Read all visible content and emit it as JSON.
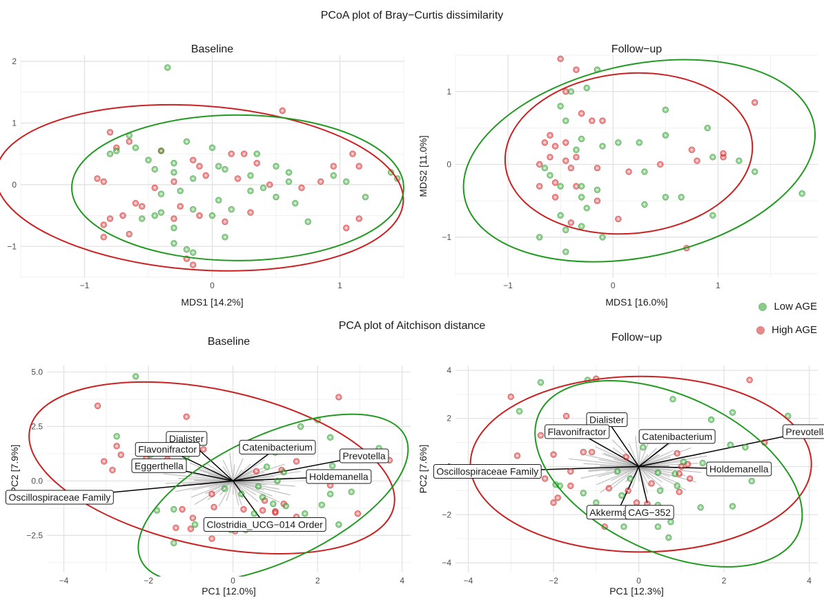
{
  "headings": {
    "pcoa": "PCoA plot of Bray−Curtis dissimilarity",
    "pca": "PCA plot of Aitchison distance"
  },
  "legend": {
    "items": [
      {
        "label": "Low AGE",
        "color": "#2ca02c"
      },
      {
        "label": "High AGE",
        "color": "#d62728"
      }
    ]
  },
  "colors": {
    "low": "#2ca02c",
    "high": "#d62728",
    "ellipse_low": "#1f9a1f",
    "ellipse_high": "#cc1f1f",
    "arrow": "#000000",
    "minor_arrow": "#8c8c8c"
  },
  "chart_data": [
    {
      "type": "scatter",
      "title": "Baseline",
      "xlabel": "MDS1 [14.2%]",
      "ylabel": "MDS2 [10.8%]",
      "xlim": [
        -1.5,
        1.5
      ],
      "ylim": [
        -1.5,
        2.1
      ],
      "xticks": [
        -1,
        0,
        1
      ],
      "yticks": [
        -1,
        0,
        1,
        2
      ],
      "grid": true,
      "low": [
        [
          -0.35,
          1.9
        ],
        [
          -0.2,
          0.7
        ],
        [
          0.0,
          0.6
        ],
        [
          0.35,
          0.5
        ],
        [
          -0.5,
          0.4
        ],
        [
          -0.3,
          0.35
        ],
        [
          -0.6,
          0.6
        ],
        [
          -0.65,
          0.8
        ],
        [
          -0.75,
          0.55
        ],
        [
          0.05,
          0.3
        ],
        [
          0.1,
          0.25
        ],
        [
          0.5,
          0.3
        ],
        [
          0.6,
          0.2
        ],
        [
          0.3,
          0.15
        ],
        [
          0.95,
          0.15
        ],
        [
          1.4,
          0.2
        ],
        [
          1.45,
          0.1
        ],
        [
          1.05,
          0.05
        ],
        [
          0.6,
          0.05
        ],
        [
          -0.45,
          0.25
        ],
        [
          -0.4,
          0.55
        ],
        [
          -0.3,
          0.2
        ],
        [
          -0.15,
          0.1
        ],
        [
          -0.25,
          -0.1
        ],
        [
          -0.4,
          -0.15
        ],
        [
          -0.15,
          -0.4
        ],
        [
          0.05,
          -0.25
        ],
        [
          0.15,
          -0.4
        ],
        [
          0.3,
          -0.1
        ],
        [
          0.4,
          -0.05
        ],
        [
          0.5,
          -0.2
        ],
        [
          0.65,
          -0.3
        ],
        [
          0.75,
          -0.6
        ],
        [
          1.2,
          -0.2
        ],
        [
          -0.3,
          -0.7
        ],
        [
          -0.2,
          -1.05
        ],
        [
          -0.3,
          -0.95
        ],
        [
          0.1,
          -0.85
        ],
        [
          -0.45,
          -0.5
        ],
        [
          -0.55,
          -0.55
        ],
        [
          0.0,
          -0.5
        ],
        [
          -0.15,
          -1.1
        ],
        [
          -0.4,
          -0.45
        ],
        [
          -0.8,
          0.5
        ]
      ],
      "high": [
        [
          -0.8,
          0.85
        ],
        [
          -0.65,
          0.7
        ],
        [
          -0.75,
          0.6
        ],
        [
          -0.4,
          0.55
        ],
        [
          -0.15,
          0.4
        ],
        [
          0.15,
          0.5
        ],
        [
          0.25,
          0.5
        ],
        [
          0.35,
          0.35
        ],
        [
          -0.1,
          0.3
        ],
        [
          0.55,
          1.2
        ],
        [
          0.95,
          0.3
        ],
        [
          1.1,
          0.5
        ],
        [
          1.15,
          0.3
        ],
        [
          0.85,
          0.05
        ],
        [
          0.7,
          -0.05
        ],
        [
          0.45,
          0.0
        ],
        [
          0.2,
          0.1
        ],
        [
          -0.05,
          0.15
        ],
        [
          -0.3,
          0.05
        ],
        [
          -0.45,
          -0.05
        ],
        [
          -0.9,
          0.1
        ],
        [
          -0.85,
          0.05
        ],
        [
          -0.6,
          -0.3
        ],
        [
          -0.55,
          -0.35
        ],
        [
          -0.7,
          -0.5
        ],
        [
          -0.8,
          -0.55
        ],
        [
          -0.85,
          -0.65
        ],
        [
          -0.25,
          -0.35
        ],
        [
          -0.1,
          -0.5
        ],
        [
          0.3,
          -0.45
        ],
        [
          0.1,
          -0.6
        ],
        [
          1.15,
          -0.55
        ],
        [
          1.05,
          -0.7
        ],
        [
          -0.2,
          -1.2
        ],
        [
          -0.15,
          -1.3
        ],
        [
          -0.85,
          -0.85
        ],
        [
          -0.65,
          -0.8
        ],
        [
          -0.3,
          -0.55
        ]
      ],
      "ellipse_low": {
        "cx": 0.2,
        "cy": -0.05,
        "rx": 1.3,
        "ry": 1.18,
        "angle": 0
      },
      "ellipse_high": {
        "cx": -0.1,
        "cy": -0.05,
        "rx": 1.6,
        "ry": 1.33,
        "angle": -4
      }
    },
    {
      "type": "scatter",
      "title": "Follow−up",
      "xlabel": "MDS1 [16.0%]",
      "ylabel": "MDS2 [11.0%]",
      "xlim": [
        -1.5,
        1.95
      ],
      "ylim": [
        -1.55,
        1.5
      ],
      "xticks": [
        -1,
        0,
        1
      ],
      "yticks": [
        -1,
        0,
        1
      ],
      "grid": true,
      "low": [
        [
          -0.15,
          1.3
        ],
        [
          -0.25,
          1.05
        ],
        [
          -0.4,
          1.0
        ],
        [
          -0.5,
          0.8
        ],
        [
          -0.45,
          0.6
        ],
        [
          -0.3,
          0.35
        ],
        [
          -0.35,
          0.2
        ],
        [
          -0.1,
          0.25
        ],
        [
          0.05,
          0.3
        ],
        [
          0.25,
          0.3
        ],
        [
          0.5,
          0.75
        ],
        [
          0.5,
          0.4
        ],
        [
          0.9,
          0.5
        ],
        [
          0.95,
          0.1
        ],
        [
          1.2,
          0.05
        ],
        [
          1.35,
          -0.1
        ],
        [
          1.8,
          -0.4
        ],
        [
          0.65,
          -0.45
        ],
        [
          0.5,
          -0.45
        ],
        [
          0.3,
          -0.55
        ],
        [
          0.3,
          -0.1
        ],
        [
          -0.15,
          -0.35
        ],
        [
          -0.3,
          -0.45
        ],
        [
          -0.25,
          -0.6
        ],
        [
          -0.3,
          -0.85
        ],
        [
          -0.45,
          -0.9
        ],
        [
          -0.45,
          -1.2
        ],
        [
          -0.1,
          -1.0
        ],
        [
          -0.5,
          -0.3
        ],
        [
          -0.6,
          -0.15
        ],
        [
          -0.7,
          -1.0
        ],
        [
          -0.65,
          -0.05
        ],
        [
          -0.3,
          -0.3
        ],
        [
          0.95,
          -0.7
        ],
        [
          -0.5,
          -0.7
        ]
      ],
      "high": [
        [
          -0.5,
          1.45
        ],
        [
          -0.35,
          1.3
        ],
        [
          -0.45,
          1.0
        ],
        [
          -0.3,
          0.7
        ],
        [
          -0.1,
          0.6
        ],
        [
          -0.2,
          0.6
        ],
        [
          -0.6,
          0.4
        ],
        [
          -0.65,
          0.3
        ],
        [
          -0.55,
          0.25
        ],
        [
          -0.6,
          0.1
        ],
        [
          -0.45,
          0.05
        ],
        [
          -0.35,
          0.1
        ],
        [
          -0.7,
          0.0
        ],
        [
          -0.4,
          -0.05
        ],
        [
          -0.15,
          -0.05
        ],
        [
          0.15,
          -0.1
        ],
        [
          0.45,
          0.0
        ],
        [
          0.75,
          0.2
        ],
        [
          0.8,
          0.05
        ],
        [
          1.05,
          0.1
        ],
        [
          -0.7,
          -0.3
        ],
        [
          -0.55,
          -0.45
        ],
        [
          -0.35,
          -0.3
        ],
        [
          -0.15,
          -0.5
        ],
        [
          0.05,
          -0.75
        ],
        [
          -0.4,
          -0.8
        ],
        [
          0.7,
          -1.15
        ],
        [
          1.05,
          0.15
        ],
        [
          1.35,
          0.85
        ],
        [
          -0.55,
          -0.25
        ],
        [
          -0.45,
          0.3
        ]
      ],
      "ellipse_low": {
        "cx": 0.25,
        "cy": 0.05,
        "rx": 1.7,
        "ry": 1.32,
        "angle": 12
      },
      "ellipse_high": {
        "cx": 0.15,
        "cy": 0.15,
        "rx": 1.18,
        "ry": 1.1,
        "angle": 5
      }
    },
    {
      "type": "scatter",
      "title": "Baseline",
      "xlabel": "PC1 [12.0%]",
      "ylabel": "PC2 [7.9%]",
      "xlim": [
        -4.4,
        4.2
      ],
      "ylim": [
        -4.2,
        5.3
      ],
      "xticks": [
        -4,
        -2,
        0,
        2,
        4
      ],
      "yticks": [
        -2.5,
        0.0,
        2.5,
        5.0
      ],
      "ytick_labels": [
        "−2.5",
        "0.0",
        "2.5",
        "5.0"
      ],
      "grid": true,
      "low": [
        [
          -2.3,
          4.8
        ],
        [
          -2.75,
          2.05
        ],
        [
          -1.95,
          1.2
        ],
        [
          -1.1,
          1.1
        ],
        [
          1.6,
          2.5
        ],
        [
          2.0,
          2.8
        ],
        [
          2.3,
          2.0
        ],
        [
          3.45,
          1.5
        ],
        [
          2.35,
          0.7
        ],
        [
          1.25,
          1.4
        ],
        [
          1.0,
          1.3
        ],
        [
          0.8,
          0.65
        ],
        [
          1.2,
          0.4
        ],
        [
          2.3,
          -0.6
        ],
        [
          2.8,
          -0.5
        ],
        [
          3.15,
          0.1
        ],
        [
          2.1,
          -1.1
        ],
        [
          1.7,
          -1.5
        ],
        [
          2.5,
          -2.0
        ],
        [
          0.5,
          -1.5
        ],
        [
          0.2,
          -0.6
        ],
        [
          -0.2,
          -0.35
        ],
        [
          -1.4,
          -1.3
        ],
        [
          -1.8,
          -1.35
        ],
        [
          -1.4,
          -2.85
        ],
        [
          -0.9,
          -2.0
        ],
        [
          -0.05,
          -2.25
        ],
        [
          0.3,
          -2.25
        ],
        [
          1.25,
          -1.15
        ],
        [
          0.7,
          -0.75
        ],
        [
          0.6,
          -0.25
        ],
        [
          1.05,
          0.0
        ],
        [
          0.95,
          -1.05
        ]
      ],
      "high": [
        [
          -3.2,
          3.45
        ],
        [
          -2.75,
          1.6
        ],
        [
          -2.65,
          1.2
        ],
        [
          -1.1,
          2.95
        ],
        [
          -2.05,
          1.05
        ],
        [
          -3.05,
          0.9
        ],
        [
          -2.85,
          0.5
        ],
        [
          -1.55,
          1.0
        ],
        [
          -0.95,
          -1.7
        ],
        [
          -1.2,
          -1.3
        ],
        [
          -1.35,
          -2.15
        ],
        [
          -1.0,
          -2.2
        ],
        [
          -0.45,
          -1.2
        ],
        [
          -0.5,
          -2.0
        ],
        [
          -0.5,
          -2.65
        ],
        [
          0.05,
          -2.3
        ],
        [
          0.25,
          -1.3
        ],
        [
          0.7,
          -1.35
        ],
        [
          1.0,
          -1.4
        ],
        [
          1.5,
          -1.65
        ],
        [
          0.8,
          -2.1
        ],
        [
          1.0,
          -1.45
        ],
        [
          1.2,
          -1.05
        ],
        [
          1.8,
          0.35
        ],
        [
          2.5,
          3.85
        ],
        [
          3.7,
          0.95
        ],
        [
          2.95,
          -1.5
        ],
        [
          2.3,
          -0.2
        ],
        [
          -0.5,
          -0.6
        ],
        [
          0.55,
          0.45
        ],
        [
          1.5,
          0.9
        ],
        [
          -0.7,
          1.45
        ],
        [
          0.75,
          -0.9
        ],
        [
          1.15,
          0.5
        ]
      ],
      "ellipse_low": {
        "cx": 0.95,
        "cy": -0.8,
        "rx": 3.45,
        "ry": 2.9,
        "angle": 25
      },
      "ellipse_high": {
        "cx": -0.5,
        "cy": 0.6,
        "rx": 4.4,
        "ry": 3.6,
        "angle": -12
      },
      "loadings": [
        {
          "label": "Dialister",
          "x": -1.1,
          "y": 1.95
        },
        {
          "label": "Flavonifractor",
          "x": -1.55,
          "y": 1.45
        },
        {
          "label": "Eggerthella",
          "x": -1.75,
          "y": 0.7
        },
        {
          "label": "Oscillospiraceae Family",
          "x": -4.1,
          "y": -0.75
        },
        {
          "label": "Catenibacterium",
          "x": 1.05,
          "y": 1.55
        },
        {
          "label": "Prevotella",
          "x": 3.1,
          "y": 1.15
        },
        {
          "label": "Holdemanella",
          "x": 2.5,
          "y": 0.2
        },
        {
          "label": "Clostridia_UCG−014 Order",
          "x": 0.75,
          "y": -2.0
        }
      ]
    },
    {
      "type": "scatter",
      "title": "Follow−up",
      "xlabel": "PC1 [12.3%]",
      "ylabel": "PC2 [7.6%]",
      "xlim": [
        -4.3,
        4.2
      ],
      "ylim": [
        -4.4,
        4.2
      ],
      "xticks": [
        -4,
        -2,
        0,
        2,
        4
      ],
      "yticks": [
        -4,
        -2,
        0,
        2,
        4
      ],
      "ytick_labels": [
        "−4",
        "−2",
        "0",
        "2",
        "4"
      ],
      "grid": true,
      "low": [
        [
          -1.2,
          3.6
        ],
        [
          -2.3,
          3.5
        ],
        [
          -2.8,
          2.3
        ],
        [
          0.8,
          2.8
        ],
        [
          1.7,
          1.95
        ],
        [
          2.2,
          2.25
        ],
        [
          3.5,
          2.1
        ],
        [
          2.15,
          0.9
        ],
        [
          2.5,
          0.8
        ],
        [
          -0.9,
          1.7
        ],
        [
          0.1,
          0.8
        ],
        [
          0.5,
          1.1
        ],
        [
          1.05,
          0.2
        ],
        [
          0.85,
          -0.3
        ],
        [
          2.65,
          -0.6
        ],
        [
          1.45,
          -1.7
        ],
        [
          0.45,
          -1.6
        ],
        [
          0.75,
          -2.3
        ],
        [
          0.45,
          -2.5
        ],
        [
          -0.35,
          -2.5
        ],
        [
          -1.3,
          -1.1
        ],
        [
          -1.85,
          -0.8
        ],
        [
          -1.95,
          -0.75
        ],
        [
          -1.0,
          -1.5
        ],
        [
          -0.4,
          -1.2
        ],
        [
          0.9,
          -0.8
        ],
        [
          1.5,
          0.15
        ],
        [
          -0.5,
          -0.2
        ],
        [
          -0.2,
          -0.5
        ],
        [
          0.45,
          -0.25
        ],
        [
          2.2,
          -1.65
        ],
        [
          0.5,
          -1.0
        ],
        [
          0.7,
          -2.95
        ]
      ],
      "high": [
        [
          -1.0,
          3.65
        ],
        [
          -3.0,
          2.9
        ],
        [
          -1.7,
          2.1
        ],
        [
          -1.75,
          1.6
        ],
        [
          -2.3,
          1.3
        ],
        [
          -1.3,
          0.6
        ],
        [
          -1.1,
          0.6
        ],
        [
          -2.0,
          0.5
        ],
        [
          -1.6,
          -0.2
        ],
        [
          -1.6,
          -0.8
        ],
        [
          -2.0,
          -1.5
        ],
        [
          -2.2,
          -0.5
        ],
        [
          -1.9,
          -1.3
        ],
        [
          -0.7,
          -0.9
        ],
        [
          -0.8,
          -2.5
        ],
        [
          -0.25,
          -1.0
        ],
        [
          -0.05,
          -1.5
        ],
        [
          0.3,
          -0.7
        ],
        [
          0.2,
          -1.55
        ],
        [
          1.2,
          -0.5
        ],
        [
          0.95,
          -1.05
        ],
        [
          0.9,
          0.55
        ],
        [
          2.6,
          3.6
        ],
        [
          3.95,
          1.6
        ],
        [
          2.95,
          1.0
        ],
        [
          1.0,
          0.0
        ],
        [
          0.95,
          -0.3
        ],
        [
          1.15,
          0.1
        ],
        [
          -0.3,
          0.4
        ],
        [
          -2.85,
          0.45
        ]
      ],
      "ellipse_low": {
        "cx": 0.7,
        "cy": -0.3,
        "rx": 3.35,
        "ry": 3.25,
        "angle": -25
      },
      "ellipse_high": {
        "cx": 0.05,
        "cy": 0.1,
        "rx": 4.0,
        "ry": 3.65,
        "angle": 0
      },
      "loadings": [
        {
          "label": "Dialister",
          "x": -0.75,
          "y": 1.95
        },
        {
          "label": "Flavonifractor",
          "x": -1.45,
          "y": 1.45
        },
        {
          "label": "Oscillospiraceae Family",
          "x": -3.55,
          "y": -0.2
        },
        {
          "label": "Catenibacterium",
          "x": 0.9,
          "y": 1.25
        },
        {
          "label": "Prevotella",
          "x": 3.95,
          "y": 1.45
        },
        {
          "label": "Holdemanella",
          "x": 2.35,
          "y": -0.1
        },
        {
          "label": "Akkermansia",
          "x": -0.5,
          "y": -1.9
        },
        {
          "label": "CAG−352",
          "x": 0.25,
          "y": -1.9
        }
      ]
    }
  ]
}
